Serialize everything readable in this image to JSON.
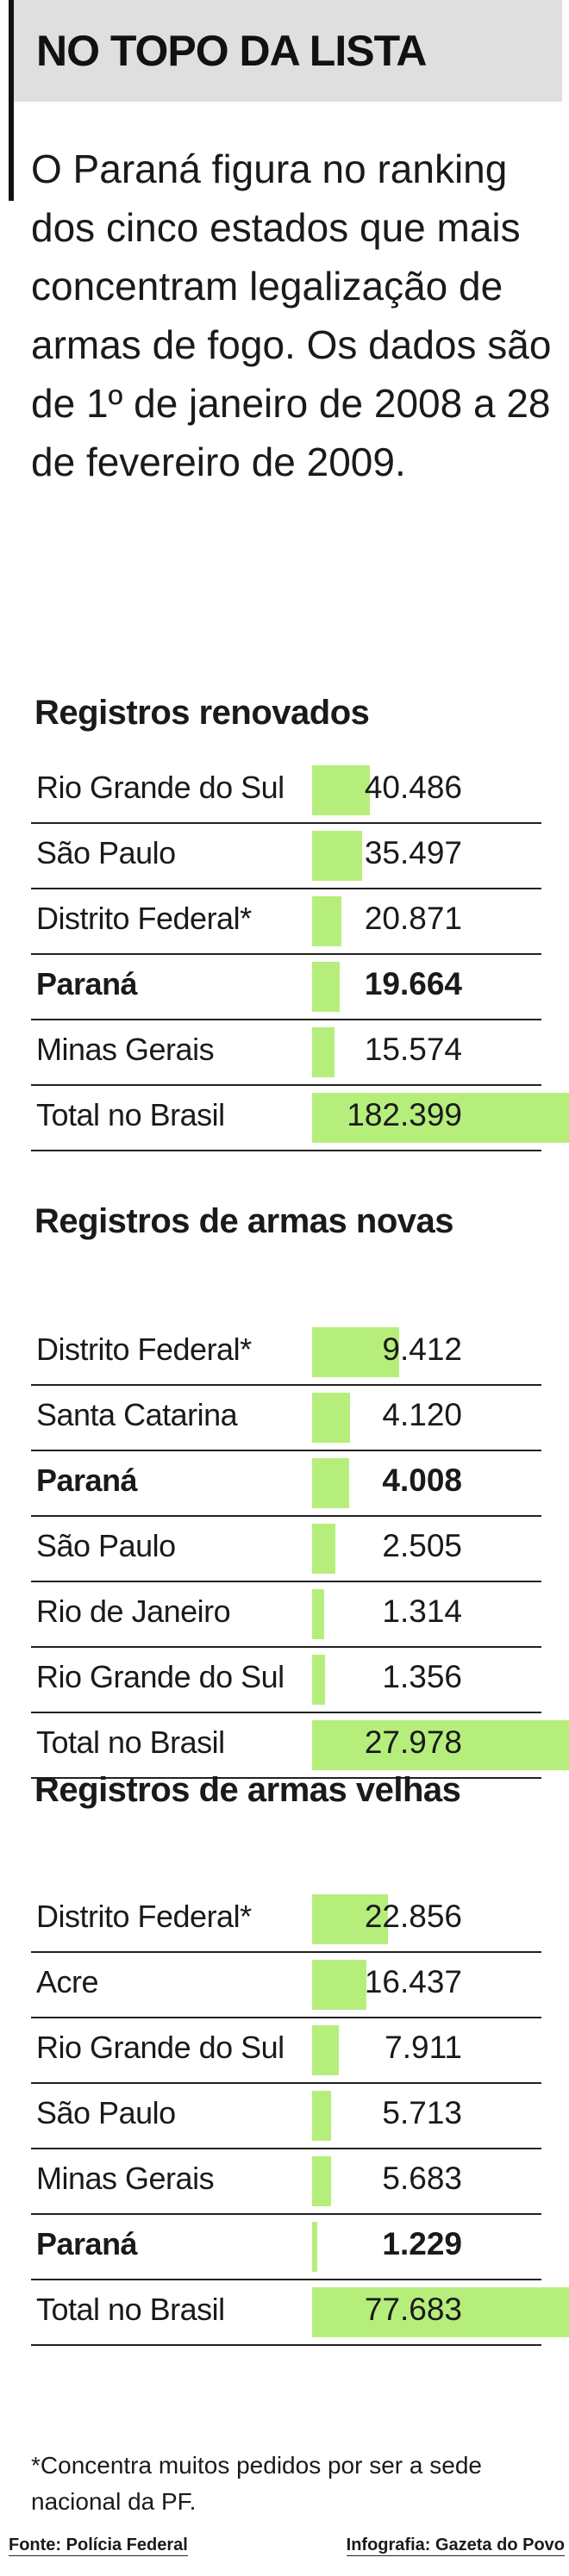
{
  "header": {
    "title": "NO TOPO DA LISTA"
  },
  "intro": "O Paraná figura no ranking dos cinco estados que mais concentram legalização de armas de fogo. Os dados são de 1º de janeiro de 2008 a 28 de fevereiro de 2009.",
  "chart_data": [
    {
      "type": "bar",
      "title": "Registros renovados",
      "categories": [
        "Rio Grande do Sul",
        "São Paulo",
        "Distrito Federal*",
        "Paraná",
        "Minas Gerais",
        "Total no Brasil"
      ],
      "values": [
        40486,
        35497,
        20871,
        19664,
        15574,
        182399
      ],
      "labels": [
        "40.486",
        "35.497",
        "20.871",
        "19.664",
        "15.574",
        "182.399"
      ],
      "highlight": "Paraná"
    },
    {
      "type": "bar",
      "title": "Registros de armas novas",
      "categories": [
        "Distrito Federal*",
        "Santa Catarina",
        "Paraná",
        "São Paulo",
        "Rio de Janeiro",
        "Rio Grande do Sul",
        "Total no Brasil"
      ],
      "values": [
        9412,
        4120,
        4008,
        2505,
        1314,
        1356,
        27978
      ],
      "labels": [
        "9.412",
        "4.120",
        "4.008",
        "2.505",
        "1.314",
        "1.356",
        "27.978"
      ],
      "highlight": "Paraná"
    },
    {
      "type": "bar",
      "title": "Registros de armas velhas",
      "categories": [
        "Distrito Federal*",
        "Acre",
        "Rio Grande do Sul",
        "São Paulo",
        "Minas Gerais",
        "Paraná",
        "Total no Brasil"
      ],
      "values": [
        22856,
        16437,
        7911,
        5713,
        5683,
        1229,
        77683
      ],
      "labels": [
        "22.856",
        "16.437",
        "7.911",
        "5.713",
        "5.683",
        "1.229",
        "77.683"
      ],
      "highlight": "Paraná"
    }
  ],
  "bar_color": "#b6ee7c",
  "footnote": "*Concentra muitos pedidos por ser a sede nacional da PF.",
  "credits": {
    "source": "Fonte: Polícia Federal",
    "art": "Infografia: Gazeta do Povo"
  }
}
